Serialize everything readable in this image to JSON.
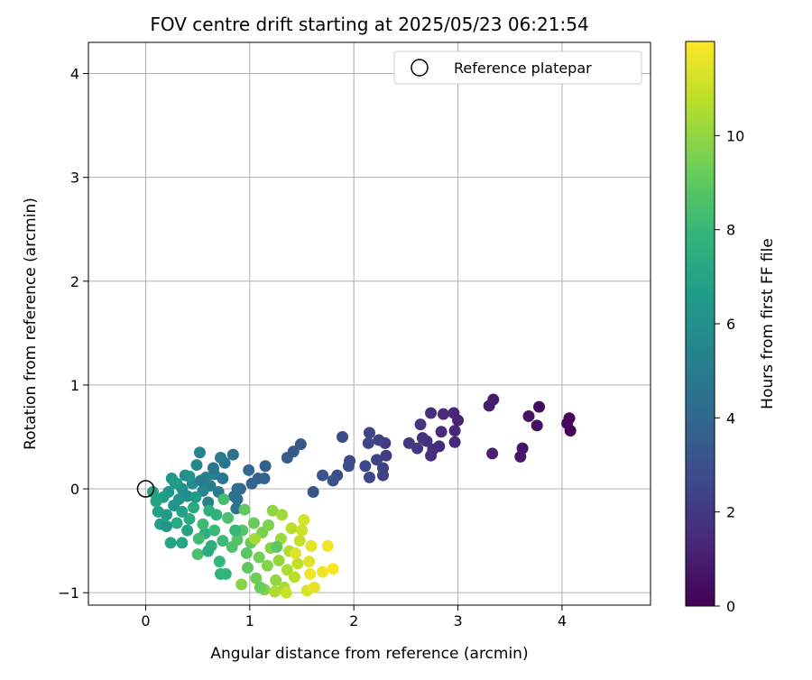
{
  "chart_data": {
    "type": "scatter",
    "title": "FOV centre drift starting at 2025/05/23 06:21:54",
    "xlabel": "Angular distance from reference (arcmin)",
    "ylabel": "Rotation from reference (arcmin)",
    "xlim": [
      -0.55,
      4.85
    ],
    "ylim": [
      -1.12,
      4.3
    ],
    "xticks": [
      0,
      1,
      2,
      3,
      4
    ],
    "yticks": [
      -1,
      0,
      1,
      2,
      3,
      4
    ],
    "grid": true,
    "legend": {
      "placement": "top-right",
      "entries": [
        "Reference platepar"
      ]
    },
    "reference_point": {
      "x": 0,
      "y": 0
    },
    "colorbar": {
      "label": "Hours from first FF file",
      "min": 0,
      "max": 12,
      "ticks": [
        0,
        2,
        4,
        6,
        8,
        10
      ],
      "colormap": [
        "#440154",
        "#482878",
        "#3e4989",
        "#31688e",
        "#26828e",
        "#1f9e89",
        "#35b779",
        "#6ece58",
        "#b5de2b",
        "#fde725"
      ]
    },
    "points": [
      {
        "x": 4.08,
        "y": 0.56,
        "t": 0.1
      },
      {
        "x": 4.07,
        "y": 0.68,
        "t": 0.2
      },
      {
        "x": 4.05,
        "y": 0.63,
        "t": 0.3
      },
      {
        "x": 3.78,
        "y": 0.79,
        "t": 0.4
      },
      {
        "x": 3.76,
        "y": 0.61,
        "t": 0.5
      },
      {
        "x": 3.68,
        "y": 0.7,
        "t": 0.6
      },
      {
        "x": 3.62,
        "y": 0.39,
        "t": 0.7
      },
      {
        "x": 3.6,
        "y": 0.31,
        "t": 0.8
      },
      {
        "x": 3.34,
        "y": 0.86,
        "t": 0.9
      },
      {
        "x": 3.3,
        "y": 0.8,
        "t": 1.0
      },
      {
        "x": 3.33,
        "y": 0.34,
        "t": 1.1
      },
      {
        "x": 3.0,
        "y": 0.66,
        "t": 1.2
      },
      {
        "x": 2.96,
        "y": 0.73,
        "t": 1.3
      },
      {
        "x": 2.97,
        "y": 0.56,
        "t": 1.3
      },
      {
        "x": 2.97,
        "y": 0.45,
        "t": 1.4
      },
      {
        "x": 2.86,
        "y": 0.72,
        "t": 1.4
      },
      {
        "x": 2.84,
        "y": 0.55,
        "t": 1.5
      },
      {
        "x": 2.82,
        "y": 0.41,
        "t": 1.5
      },
      {
        "x": 2.74,
        "y": 0.73,
        "t": 1.6
      },
      {
        "x": 2.76,
        "y": 0.38,
        "t": 1.6
      },
      {
        "x": 2.74,
        "y": 0.32,
        "t": 1.7
      },
      {
        "x": 2.7,
        "y": 0.46,
        "t": 1.7
      },
      {
        "x": 2.66,
        "y": 0.49,
        "t": 1.8
      },
      {
        "x": 2.64,
        "y": 0.62,
        "t": 1.8
      },
      {
        "x": 2.61,
        "y": 0.39,
        "t": 1.9
      },
      {
        "x": 2.53,
        "y": 0.44,
        "t": 2.0
      },
      {
        "x": 2.3,
        "y": 0.44,
        "t": 2.1
      },
      {
        "x": 2.31,
        "y": 0.32,
        "t": 2.2
      },
      {
        "x": 2.28,
        "y": 0.2,
        "t": 2.3
      },
      {
        "x": 2.28,
        "y": 0.13,
        "t": 2.3
      },
      {
        "x": 2.24,
        "y": 0.47,
        "t": 2.4
      },
      {
        "x": 2.22,
        "y": 0.28,
        "t": 2.4
      },
      {
        "x": 2.15,
        "y": 0.54,
        "t": 2.5
      },
      {
        "x": 2.14,
        "y": 0.44,
        "t": 2.5
      },
      {
        "x": 2.15,
        "y": 0.11,
        "t": 2.6
      },
      {
        "x": 2.11,
        "y": 0.22,
        "t": 2.6
      },
      {
        "x": 1.96,
        "y": 0.27,
        "t": 2.7
      },
      {
        "x": 1.95,
        "y": 0.22,
        "t": 2.8
      },
      {
        "x": 1.89,
        "y": 0.5,
        "t": 2.8
      },
      {
        "x": 1.84,
        "y": 0.13,
        "t": 2.9
      },
      {
        "x": 1.8,
        "y": 0.08,
        "t": 3.0
      },
      {
        "x": 1.7,
        "y": 0.13,
        "t": 3.1
      },
      {
        "x": 1.61,
        "y": -0.03,
        "t": 3.2
      },
      {
        "x": 1.49,
        "y": 0.43,
        "t": 3.3
      },
      {
        "x": 1.42,
        "y": 0.36,
        "t": 3.4
      },
      {
        "x": 1.36,
        "y": 0.3,
        "t": 3.5
      },
      {
        "x": 1.15,
        "y": 0.22,
        "t": 3.6
      },
      {
        "x": 1.14,
        "y": 0.1,
        "t": 3.7
      },
      {
        "x": 1.08,
        "y": 0.1,
        "t": 3.8
      },
      {
        "x": 1.02,
        "y": 0.05,
        "t": 3.9
      },
      {
        "x": 0.99,
        "y": 0.18,
        "t": 4.0
      },
      {
        "x": 0.91,
        "y": 0.0,
        "t": 4.1
      },
      {
        "x": 0.88,
        "y": 0.0,
        "t": 4.2
      },
      {
        "x": 0.85,
        "y": -0.07,
        "t": 4.3
      },
      {
        "x": 0.84,
        "y": 0.33,
        "t": 4.4
      },
      {
        "x": 0.88,
        "y": -0.1,
        "t": 4.5
      },
      {
        "x": 0.87,
        "y": -0.19,
        "t": 4.6
      },
      {
        "x": 0.76,
        "y": 0.25,
        "t": 4.7
      },
      {
        "x": 0.74,
        "y": 0.1,
        "t": 4.8
      },
      {
        "x": 0.72,
        "y": 0.3,
        "t": 4.9
      },
      {
        "x": 0.7,
        "y": -0.03,
        "t": 5.0
      },
      {
        "x": 0.66,
        "y": 0.14,
        "t": 5.1
      },
      {
        "x": 0.62,
        "y": 0.03,
        "t": 5.2
      },
      {
        "x": 0.6,
        "y": -0.13,
        "t": 5.3
      },
      {
        "x": 0.58,
        "y": 0.11,
        "t": 5.4
      },
      {
        "x": 0.55,
        "y": -0.02,
        "t": 5.5
      },
      {
        "x": 0.52,
        "y": 0.35,
        "t": 5.5
      },
      {
        "x": 0.49,
        "y": 0.23,
        "t": 5.6
      },
      {
        "x": 0.45,
        "y": 0.05,
        "t": 5.7
      },
      {
        "x": 0.4,
        "y": -0.07,
        "t": 5.8
      },
      {
        "x": 0.38,
        "y": 0.13,
        "t": 5.9
      },
      {
        "x": 0.35,
        "y": 0.0,
        "t": 6.0
      },
      {
        "x": 0.32,
        "y": -0.1,
        "t": 6.1
      },
      {
        "x": 0.3,
        "y": 0.05,
        "t": 6.2
      },
      {
        "x": 0.27,
        "y": -0.16,
        "t": 6.2
      },
      {
        "x": 0.25,
        "y": 0.1,
        "t": 6.3
      },
      {
        "x": 0.22,
        "y": -0.03,
        "t": 6.4
      },
      {
        "x": 0.2,
        "y": -0.25,
        "t": 6.5
      },
      {
        "x": 0.17,
        "y": -0.08,
        "t": 6.6
      },
      {
        "x": 0.14,
        "y": -0.34,
        "t": 6.7
      },
      {
        "x": 0.12,
        "y": -0.22,
        "t": 6.8
      },
      {
        "x": 0.1,
        "y": -0.12,
        "t": 6.9
      },
      {
        "x": 0.07,
        "y": -0.03,
        "t": 7.0
      },
      {
        "x": 0.24,
        "y": -0.52,
        "t": 7.0
      },
      {
        "x": 0.35,
        "y": -0.52,
        "t": 7.1
      },
      {
        "x": 0.3,
        "y": -0.33,
        "t": 7.2
      },
      {
        "x": 0.42,
        "y": -0.29,
        "t": 7.3
      },
      {
        "x": 0.46,
        "y": -0.18,
        "t": 7.4
      },
      {
        "x": 0.57,
        "y": -0.43,
        "t": 7.5
      },
      {
        "x": 0.63,
        "y": -0.55,
        "t": 7.6
      },
      {
        "x": 0.68,
        "y": -0.25,
        "t": 7.7
      },
      {
        "x": 0.72,
        "y": -0.82,
        "t": 7.8
      },
      {
        "x": 0.77,
        "y": -0.82,
        "t": 7.9
      },
      {
        "x": 0.71,
        "y": -0.7,
        "t": 8.0
      },
      {
        "x": 0.66,
        "y": -0.4,
        "t": 8.1
      },
      {
        "x": 0.55,
        "y": -0.34,
        "t": 8.2
      },
      {
        "x": 0.51,
        "y": -0.48,
        "t": 8.3
      },
      {
        "x": 0.75,
        "y": -0.1,
        "t": 8.4
      },
      {
        "x": 0.79,
        "y": -0.28,
        "t": 8.5
      },
      {
        "x": 0.83,
        "y": -0.56,
        "t": 8.6
      },
      {
        "x": 0.88,
        "y": -0.49,
        "t": 8.7
      },
      {
        "x": 0.93,
        "y": -0.4,
        "t": 8.8
      },
      {
        "x": 0.97,
        "y": -0.62,
        "t": 8.9
      },
      {
        "x": 0.98,
        "y": -0.76,
        "t": 9.0
      },
      {
        "x": 1.01,
        "y": -0.52,
        "t": 9.1
      },
      {
        "x": 1.04,
        "y": -0.33,
        "t": 9.2
      },
      {
        "x": 1.06,
        "y": -0.86,
        "t": 9.3
      },
      {
        "x": 1.09,
        "y": -0.66,
        "t": 9.4
      },
      {
        "x": 1.12,
        "y": -0.42,
        "t": 9.5
      },
      {
        "x": 1.14,
        "y": -0.97,
        "t": 9.6
      },
      {
        "x": 1.17,
        "y": -0.74,
        "t": 9.7
      },
      {
        "x": 1.2,
        "y": -0.57,
        "t": 9.8
      },
      {
        "x": 1.22,
        "y": -0.21,
        "t": 9.9
      },
      {
        "x": 1.25,
        "y": -0.88,
        "t": 10.0
      },
      {
        "x": 1.28,
        "y": -0.69,
        "t": 10.1
      },
      {
        "x": 1.3,
        "y": -0.48,
        "t": 10.2
      },
      {
        "x": 1.31,
        "y": -0.25,
        "t": 10.3
      },
      {
        "x": 1.33,
        "y": -0.95,
        "t": 10.4
      },
      {
        "x": 1.36,
        "y": -0.78,
        "t": 10.5
      },
      {
        "x": 1.38,
        "y": -0.6,
        "t": 10.6
      },
      {
        "x": 1.4,
        "y": -0.38,
        "t": 10.7
      },
      {
        "x": 1.43,
        "y": -0.85,
        "t": 10.8
      },
      {
        "x": 1.46,
        "y": -0.72,
        "t": 10.9
      },
      {
        "x": 1.48,
        "y": -0.5,
        "t": 11.0
      },
      {
        "x": 1.5,
        "y": -0.4,
        "t": 11.1
      },
      {
        "x": 1.52,
        "y": -0.3,
        "t": 11.2
      },
      {
        "x": 1.55,
        "y": -0.98,
        "t": 11.3
      },
      {
        "x": 1.57,
        "y": -0.7,
        "t": 11.4
      },
      {
        "x": 1.59,
        "y": -0.55,
        "t": 11.5
      },
      {
        "x": 1.62,
        "y": -0.95,
        "t": 11.6
      },
      {
        "x": 1.7,
        "y": -0.8,
        "t": 11.7
      },
      {
        "x": 1.75,
        "y": -0.55,
        "t": 11.8
      },
      {
        "x": 1.8,
        "y": -0.77,
        "t": 11.9
      },
      {
        "x": 0.5,
        "y": -0.63,
        "t": 8.5
      },
      {
        "x": 0.6,
        "y": -0.6,
        "t": 7.4
      },
      {
        "x": 0.92,
        "y": -0.92,
        "t": 9.8
      },
      {
        "x": 1.1,
        "y": -0.95,
        "t": 9.2
      },
      {
        "x": 1.35,
        "y": -1.0,
        "t": 11.0
      },
      {
        "x": 1.24,
        "y": -0.99,
        "t": 10.5
      },
      {
        "x": 0.4,
        "y": -0.4,
        "t": 7.0
      },
      {
        "x": 0.2,
        "y": -0.36,
        "t": 6.3
      },
      {
        "x": 0.35,
        "y": -0.22,
        "t": 6.8
      },
      {
        "x": 0.48,
        "y": -0.08,
        "t": 6.6
      },
      {
        "x": 0.61,
        "y": -0.21,
        "t": 7.6
      },
      {
        "x": 0.95,
        "y": -0.2,
        "t": 9.0
      },
      {
        "x": 1.05,
        "y": -0.48,
        "t": 10.4
      },
      {
        "x": 1.18,
        "y": -0.35,
        "t": 9.6
      },
      {
        "x": 1.44,
        "y": -0.62,
        "t": 11.4
      },
      {
        "x": 1.58,
        "y": -0.82,
        "t": 11.7
      },
      {
        "x": 1.26,
        "y": -0.56,
        "t": 8.9
      },
      {
        "x": 0.86,
        "y": -0.4,
        "t": 8.0
      },
      {
        "x": 0.74,
        "y": -0.5,
        "t": 8.2
      },
      {
        "x": 0.53,
        "y": 0.08,
        "t": 5.0
      },
      {
        "x": 0.65,
        "y": 0.2,
        "t": 4.7
      },
      {
        "x": 0.42,
        "y": 0.12,
        "t": 6.1
      },
      {
        "x": 0.28,
        "y": 0.06,
        "t": 6.6
      }
    ]
  }
}
